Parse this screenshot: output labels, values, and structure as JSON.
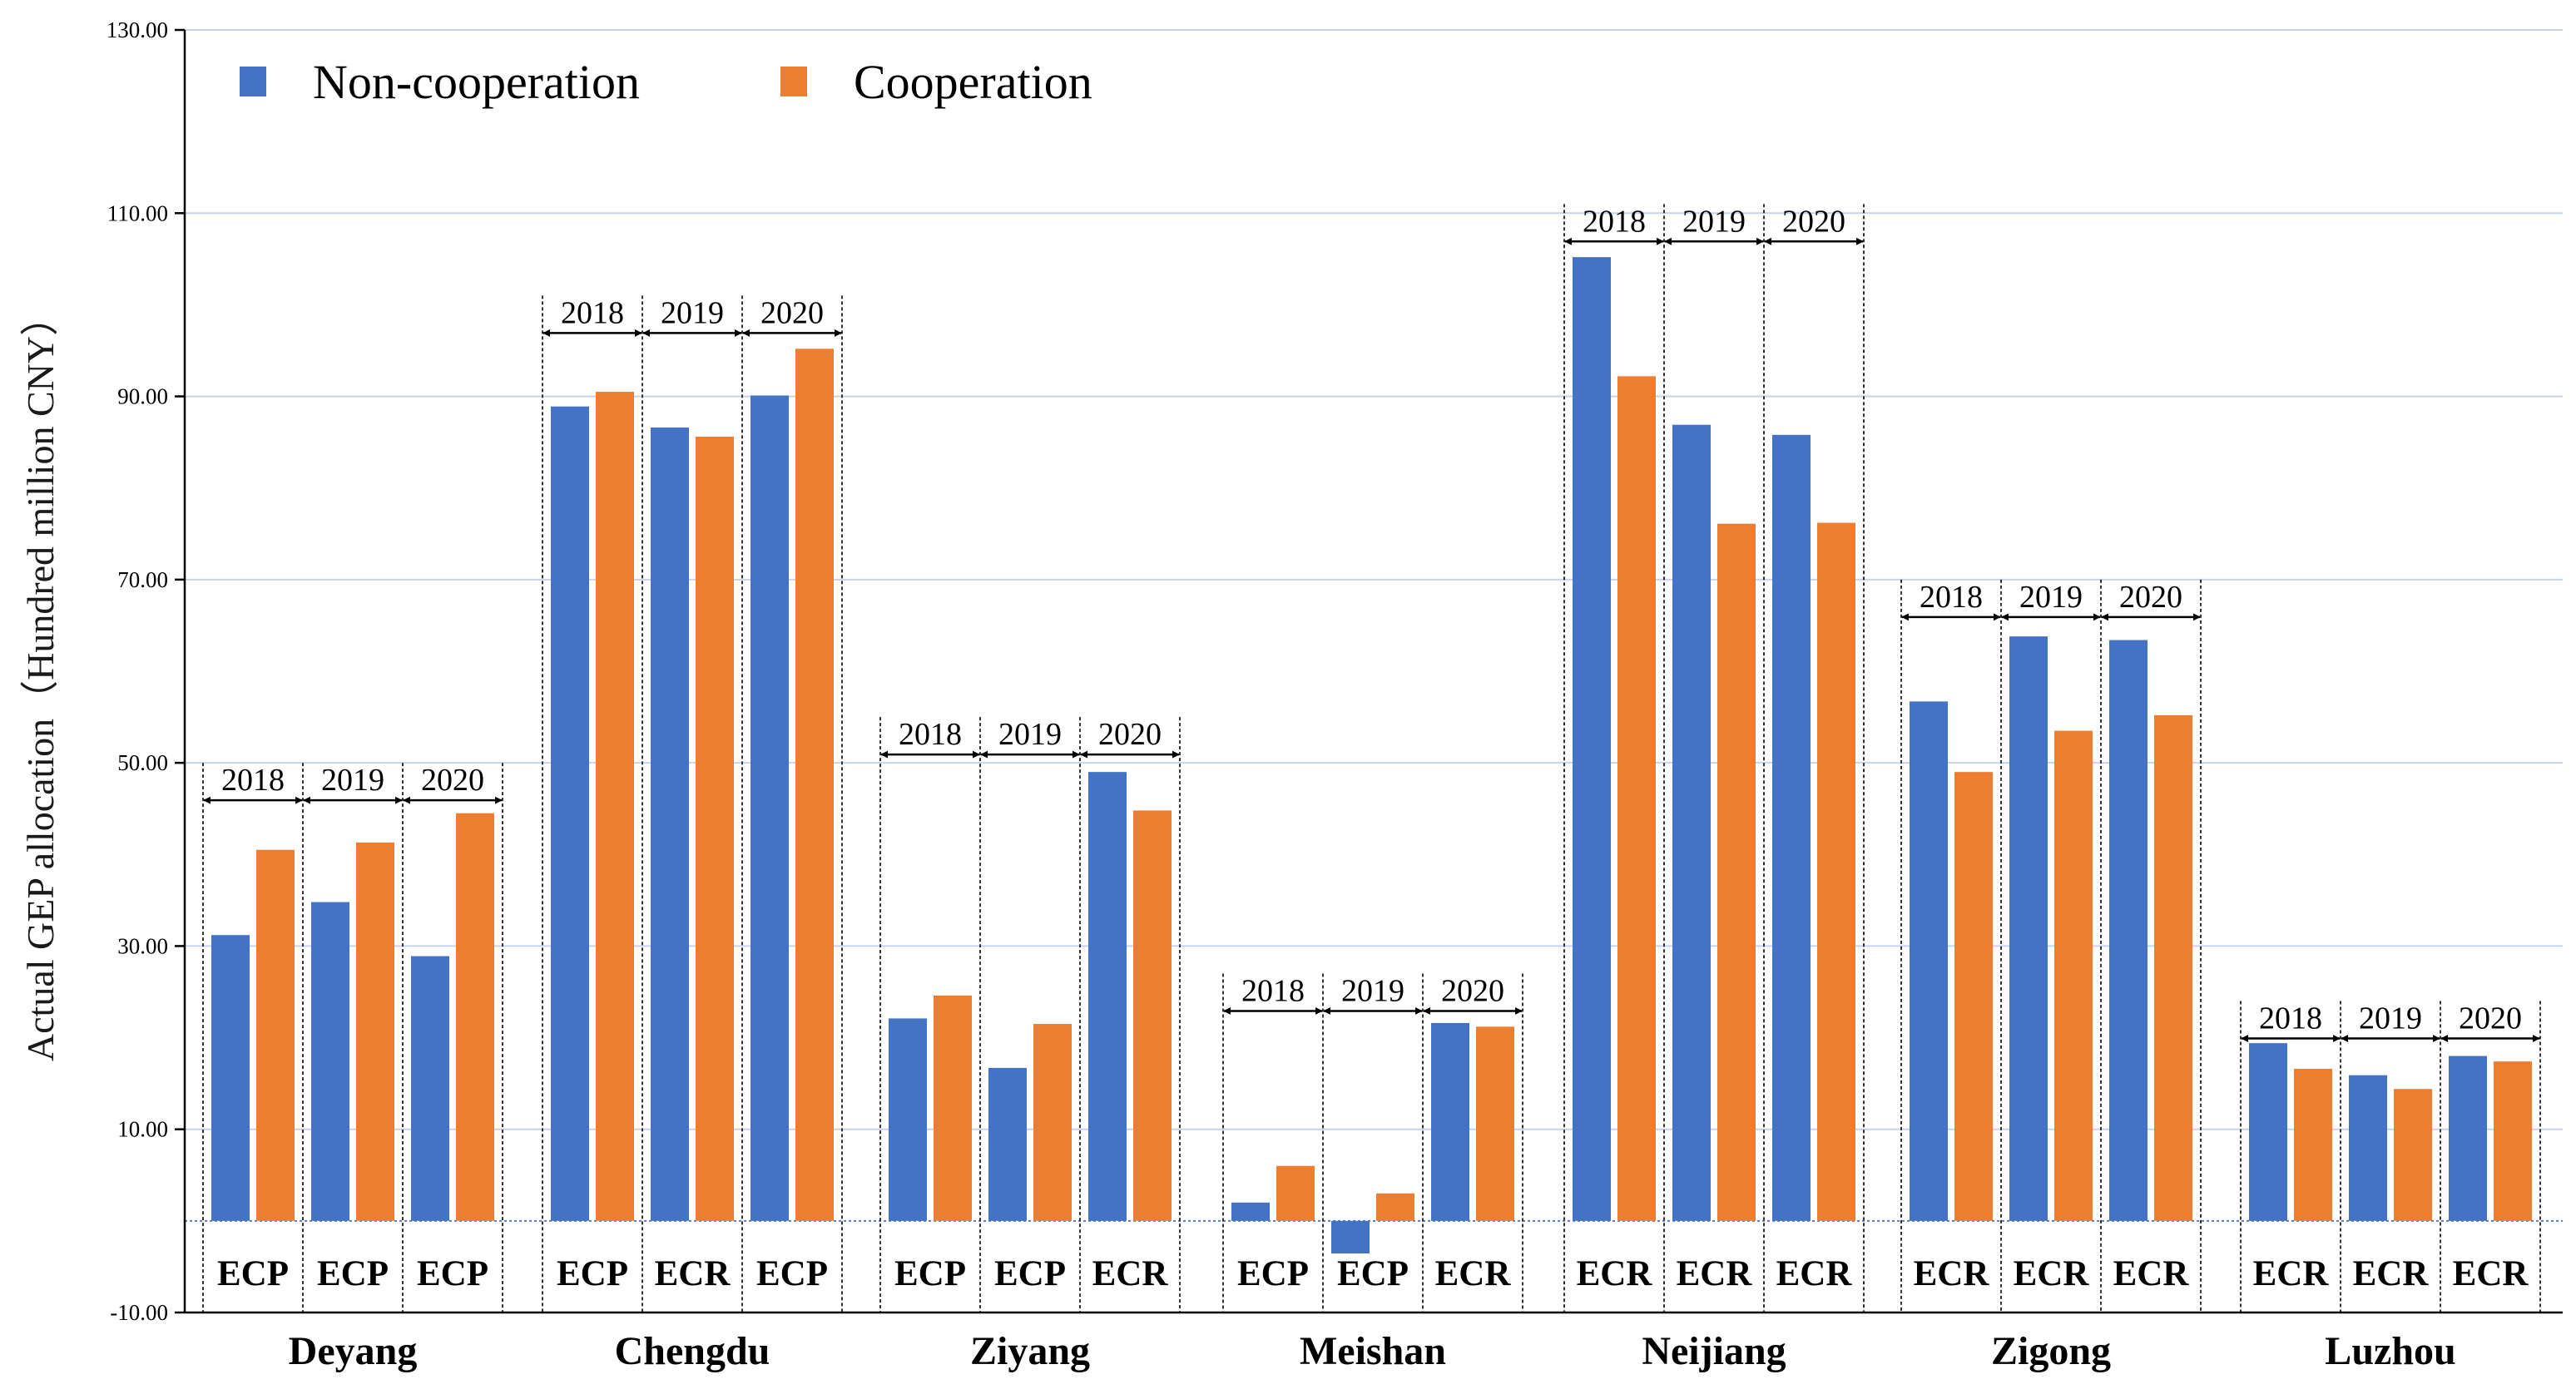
{
  "chart_data": {
    "type": "bar",
    "ylabel": "Actual GEP allocation（Hundred million CNY）",
    "ylim": [
      -10,
      130
    ],
    "yticks": [
      -10,
      10,
      30,
      50,
      70,
      90,
      110,
      130
    ],
    "ytick_labels": [
      "-10.00",
      "10.00",
      "30.00",
      "50.00",
      "70.00",
      "90.00",
      "110.00",
      "130.00"
    ],
    "grid": true,
    "legend_position": "top-left",
    "series": [
      {
        "name": "Non-cooperation",
        "color": "#4472C4"
      },
      {
        "name": "Cooperation",
        "color": "#ED7D31"
      }
    ],
    "years": [
      "2018",
      "2019",
      "2020"
    ],
    "cities": [
      {
        "name": "Deyang",
        "bracket_top": 50,
        "noncoop": [
          31.2,
          34.8,
          28.9
        ],
        "coop": [
          40.5,
          41.3,
          44.5
        ],
        "types": [
          "ECP",
          "ECP",
          "ECP"
        ]
      },
      {
        "name": "Chengdu",
        "bracket_top": 101,
        "noncoop": [
          88.9,
          86.6,
          90.1
        ],
        "coop": [
          90.5,
          85.6,
          95.2
        ],
        "types": [
          "ECP",
          "ECR",
          "ECP"
        ]
      },
      {
        "name": "Ziyang",
        "bracket_top": 55,
        "noncoop": [
          22.1,
          16.7,
          49.0
        ],
        "coop": [
          24.6,
          21.5,
          44.8
        ],
        "types": [
          "ECP",
          "ECP",
          "ECR"
        ]
      },
      {
        "name": "Meishan",
        "bracket_top": 27,
        "noncoop": [
          2.0,
          -4.6,
          21.6
        ],
        "coop": [
          6.0,
          3.0,
          21.2
        ],
        "types": [
          "ECP",
          "ECP",
          "ECR"
        ]
      },
      {
        "name": "Neijiang",
        "bracket_top": 111,
        "noncoop": [
          105.2,
          86.9,
          85.8
        ],
        "coop": [
          92.2,
          76.1,
          76.2
        ],
        "types": [
          "ECR",
          "ECR",
          "ECR"
        ]
      },
      {
        "name": "Zigong",
        "bracket_top": 70,
        "noncoop": [
          56.7,
          63.8,
          63.4
        ],
        "coop": [
          49.0,
          53.5,
          55.2
        ],
        "types": [
          "ECR",
          "ECR",
          "ECR"
        ]
      },
      {
        "name": "Luzhou",
        "bracket_top": 24,
        "noncoop": [
          19.4,
          15.9,
          18.0
        ],
        "coop": [
          16.6,
          14.4,
          17.4
        ],
        "types": [
          "ECR",
          "ECR",
          "ECR"
        ]
      }
    ]
  }
}
